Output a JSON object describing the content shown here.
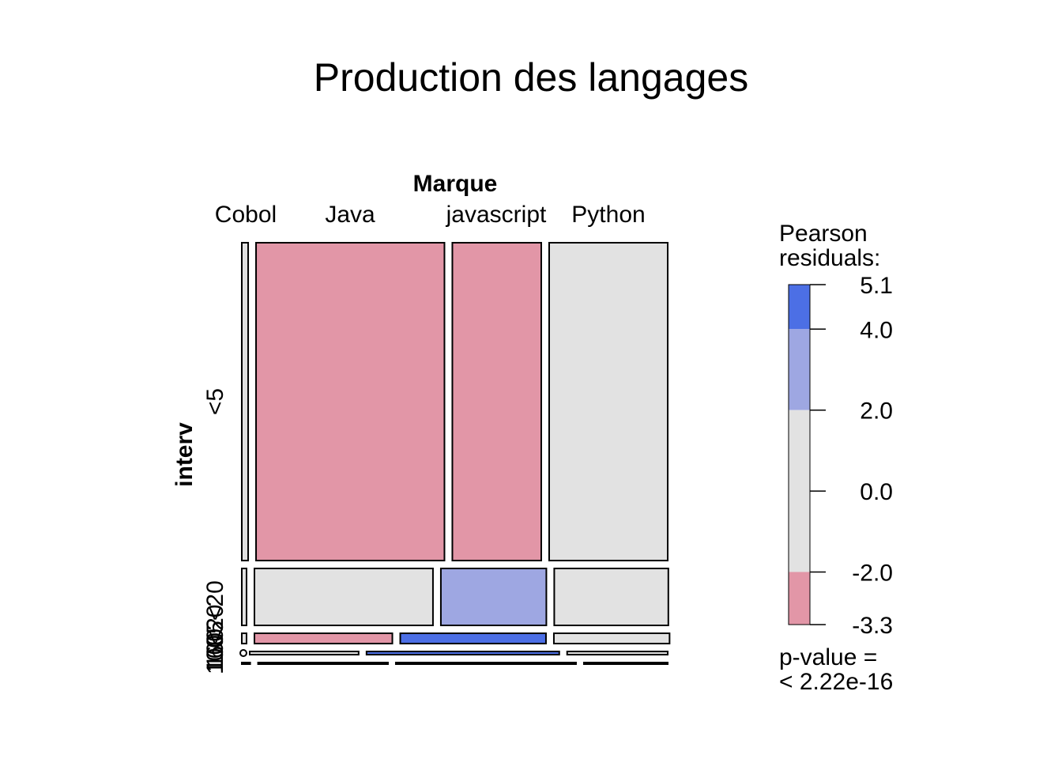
{
  "chart_data": {
    "type": "mosaic",
    "title": "Production des langages",
    "column_variable": "Marque",
    "row_variable": "interv",
    "columns": [
      "Cobol",
      "Java",
      "javascript",
      "Python"
    ],
    "row_labels_visible": [
      "<5",
      "5<20",
      "<20",
      "100",
      "100",
      "160"
    ],
    "rows": [
      {
        "label": "<5",
        "proportion": 0.7,
        "cells": [
          {
            "column": "Cobol",
            "share": 0.015,
            "shading": "neutral"
          },
          {
            "column": "Java",
            "share": 0.445,
            "shading": "negative_moderate"
          },
          {
            "column": "javascript",
            "share": 0.21,
            "shading": "negative_moderate"
          },
          {
            "column": "Python",
            "share": 0.28,
            "shading": "neutral"
          }
        ]
      },
      {
        "label": "5<20",
        "proportion": 0.13,
        "cells": [
          {
            "column": "Cobol",
            "share": 0.01,
            "shading": "neutral"
          },
          {
            "column": "Java",
            "share": 0.435,
            "shading": "neutral"
          },
          {
            "column": "javascript",
            "share": 0.257,
            "shading": "positive_moderate"
          },
          {
            "column": "Python",
            "share": 0.278,
            "shading": "neutral"
          }
        ]
      },
      {
        "label": "20<100",
        "proportion": 0.025,
        "cells": [
          {
            "column": "Cobol",
            "share": 0.007,
            "shading": "neutral"
          },
          {
            "column": "Java",
            "share": 0.335,
            "shading": "negative_moderate"
          },
          {
            "column": "javascript",
            "share": 0.354,
            "shading": "positive_strong"
          },
          {
            "column": "Python",
            "share": 0.281,
            "shading": "neutral"
          }
        ]
      },
      {
        "label": "100<160",
        "proportion": 0.008,
        "cells": [
          {
            "column": "Cobol",
            "share": 0.0,
            "shading": "neutral"
          },
          {
            "column": "Java",
            "share": 0.26,
            "shading": "neutral"
          },
          {
            "column": "javascript",
            "share": 0.46,
            "shading": "positive_strong"
          },
          {
            "column": "Python",
            "share": 0.24,
            "shading": "neutral"
          }
        ]
      },
      {
        "label": ">160",
        "proportion": 0.004,
        "cells": [
          {
            "column": "Cobol",
            "share": 0.02,
            "shading": "neutral"
          },
          {
            "column": "Java",
            "share": 0.31,
            "shading": "neutral"
          },
          {
            "column": "javascript",
            "share": 0.43,
            "shading": "neutral"
          },
          {
            "column": "Python",
            "share": 0.2,
            "shading": "neutral"
          }
        ]
      }
    ],
    "legend": {
      "title": "Pearson residuals:",
      "ticks": [
        5.1,
        4.0,
        2.0,
        0.0,
        -2.0,
        -3.3
      ],
      "bands": [
        {
          "from": 4.0,
          "to": 5.1,
          "color": "#4c6fe5"
        },
        {
          "from": 2.0,
          "to": 4.0,
          "color": "#9ea7e2"
        },
        {
          "from": -2.0,
          "to": 2.0,
          "color": "#e2e2e2"
        },
        {
          "from": -3.3,
          "to": -2.0,
          "color": "#e296a7"
        }
      ],
      "pvalue_label": "p-value =",
      "pvalue": "< 2.22e-16"
    },
    "colors": {
      "neutral": "#e2e2e2",
      "positive_moderate": "#9ea7e2",
      "positive_strong": "#4c6fe5",
      "negative_moderate": "#e296a7"
    }
  }
}
